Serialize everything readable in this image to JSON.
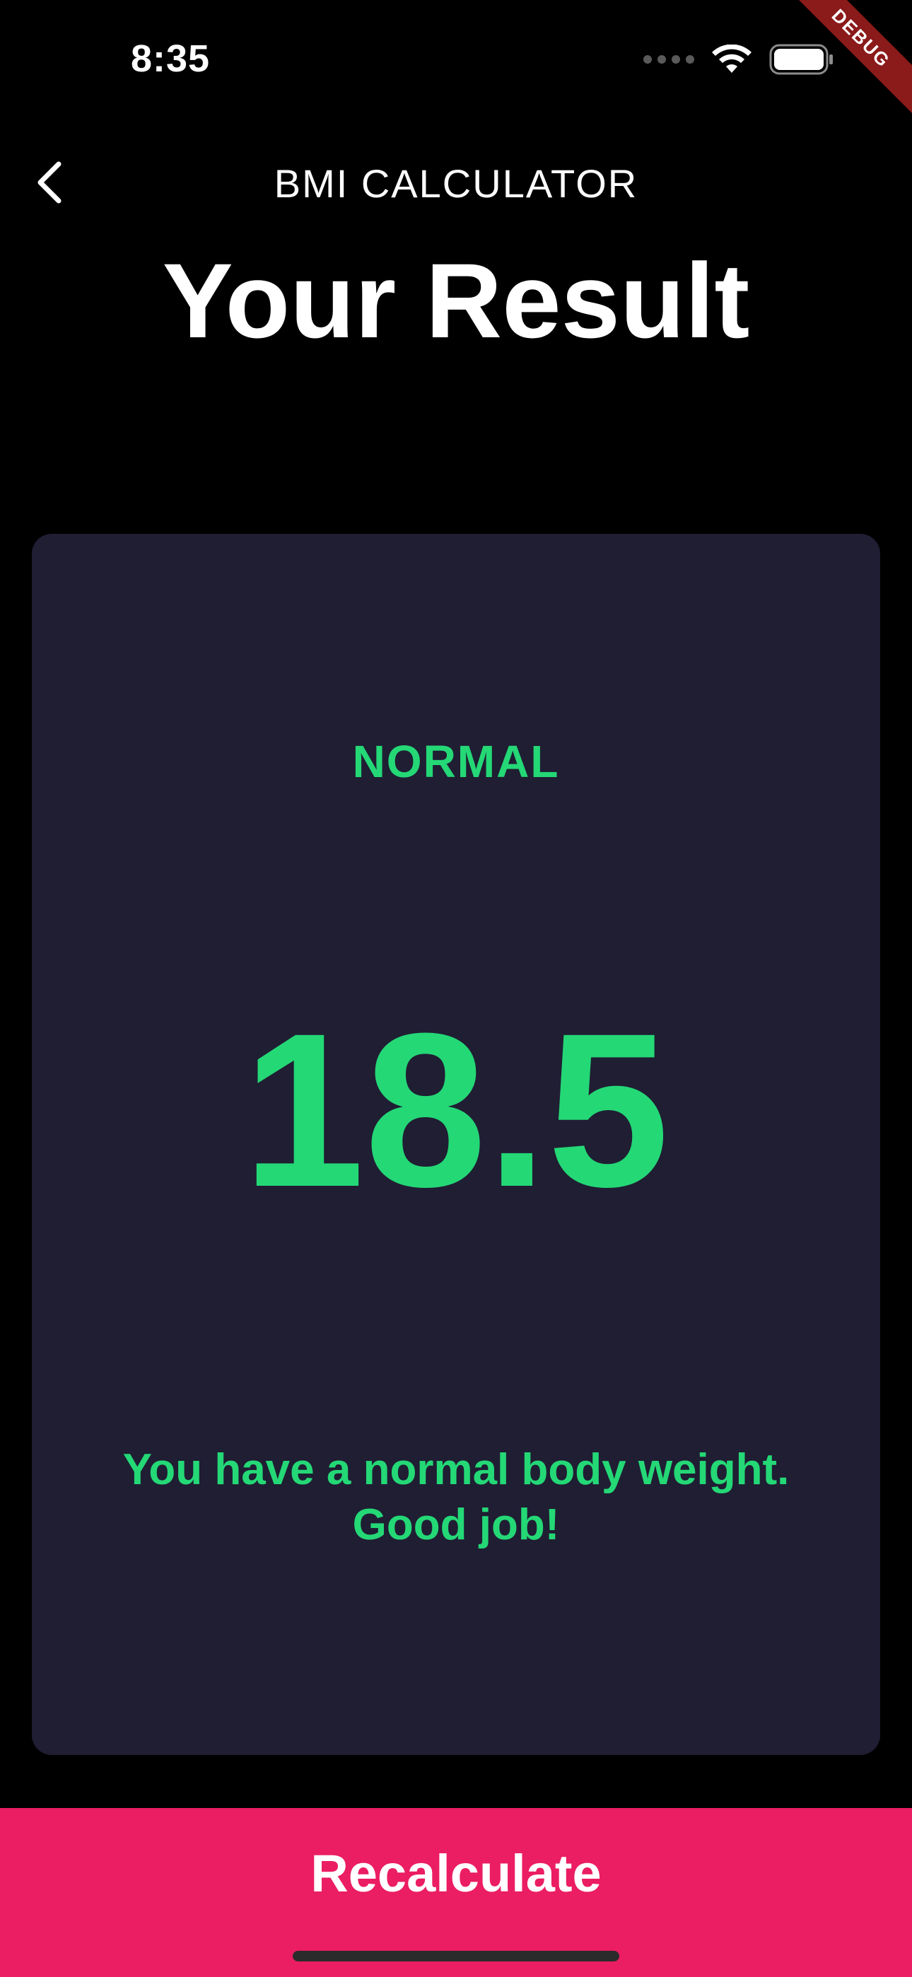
{
  "status_bar": {
    "time": "8:35",
    "debug_label": "DEBUG"
  },
  "app_bar": {
    "title": "BMI CALCULATOR",
    "back_icon": "chevron-left-icon"
  },
  "page": {
    "title": "Your Result"
  },
  "result": {
    "status": "NORMAL",
    "value": "18.5",
    "message": "You have a normal body weight. Good job!"
  },
  "actions": {
    "recalculate_label": "Recalculate"
  },
  "colors": {
    "background": "#000000",
    "card": "#1f1e33",
    "accent_green": "#24d876",
    "button_pink": "#eb1d63",
    "debug_banner": "#8b1a1a"
  }
}
